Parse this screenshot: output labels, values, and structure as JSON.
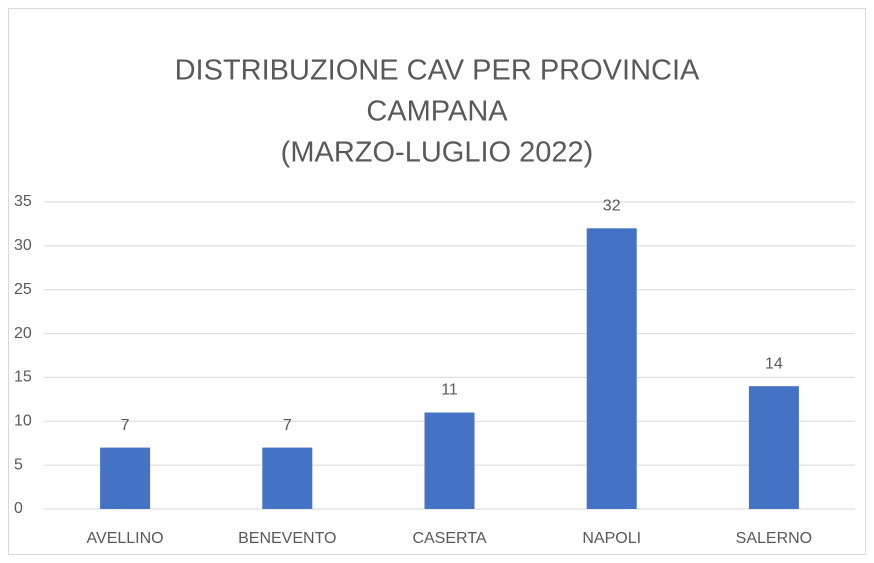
{
  "chart_data": {
    "type": "bar",
    "title": [
      "DISTRIBUZIONE CAV PER PROVINCIA",
      "CAMPANA",
      "(MARZO-LUGLIO 2022)"
    ],
    "categories": [
      "AVELLINO",
      "BENEVENTO",
      "CASERTA",
      "NAPOLI",
      "SALERNO"
    ],
    "values": [
      7,
      7,
      11,
      32,
      14
    ],
    "color": "#4472c4",
    "ylim": [
      0,
      35
    ],
    "yticks": [
      0,
      5,
      10,
      15,
      20,
      25,
      30,
      35
    ],
    "grid": true
  }
}
